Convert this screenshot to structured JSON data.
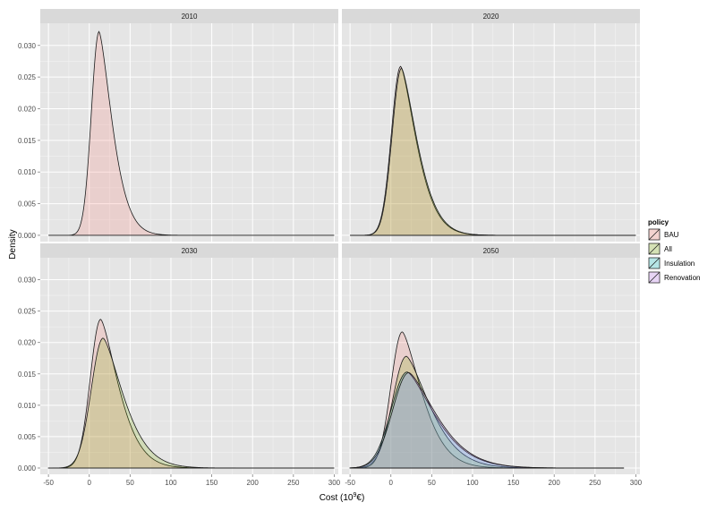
{
  "chart_data": {
    "type": "area",
    "xlabel": "Cost (10^9€)",
    "xlabel_base": "Cost (10",
    "xlabel_exp": "9",
    "xlabel_end": "€)",
    "ylabel": "Density",
    "xlim": [
      -60,
      305
    ],
    "ylim": [
      -0.001,
      0.0335
    ],
    "x_ticks": [
      -50,
      0,
      50,
      100,
      150,
      200,
      250,
      300
    ],
    "y_ticks": [
      0.0,
      0.005,
      0.01,
      0.015,
      0.02,
      0.025,
      0.03
    ],
    "y_tick_labels": [
      "0.000",
      "0.005",
      "0.010",
      "0.015",
      "0.020",
      "0.025",
      "0.030"
    ],
    "x_tick_labels": [
      "-50",
      "0",
      "50",
      "100",
      "150",
      "200",
      "250",
      "300"
    ],
    "grid": true,
    "legend_position": "right",
    "legend": {
      "title": "policy",
      "items": [
        {
          "name": "BAU",
          "color": "#F8766D"
        },
        {
          "name": "All",
          "color": "#7CAE00"
        },
        {
          "name": "Insulation",
          "color": "#00BFC4"
        },
        {
          "name": "Renovation",
          "color": "#C77CFF"
        }
      ]
    },
    "panels": [
      {
        "title": "2010",
        "series": [
          {
            "name": "BAU",
            "mode": 12,
            "peak": 0.0322,
            "range": [
              -50,
              300
            ]
          }
        ]
      },
      {
        "title": "2020",
        "series": [
          {
            "name": "BAU",
            "mode": 12,
            "peak": 0.0267,
            "range": [
              -50,
              300
            ]
          },
          {
            "name": "All",
            "mode": 13,
            "peak": 0.0264,
            "range": [
              -50,
              300
            ]
          }
        ]
      },
      {
        "title": "2030",
        "series": [
          {
            "name": "BAU",
            "mode": 14,
            "peak": 0.0237,
            "range": [
              -50,
              300
            ]
          },
          {
            "name": "All",
            "mode": 17,
            "peak": 0.0207,
            "range": [
              -50,
              300
            ]
          }
        ]
      },
      {
        "title": "2050",
        "series": [
          {
            "name": "BAU",
            "mode": 14,
            "peak": 0.0217,
            "range": [
              -50,
              285
            ]
          },
          {
            "name": "All",
            "mode": 19,
            "peak": 0.0178,
            "range": [
              -50,
              285
            ]
          },
          {
            "name": "Insulation",
            "mode": 20,
            "peak": 0.0153,
            "range": [
              -50,
              285
            ]
          },
          {
            "name": "Renovation",
            "mode": 22,
            "peak": 0.0152,
            "range": [
              -50,
              285
            ]
          }
        ]
      }
    ]
  }
}
